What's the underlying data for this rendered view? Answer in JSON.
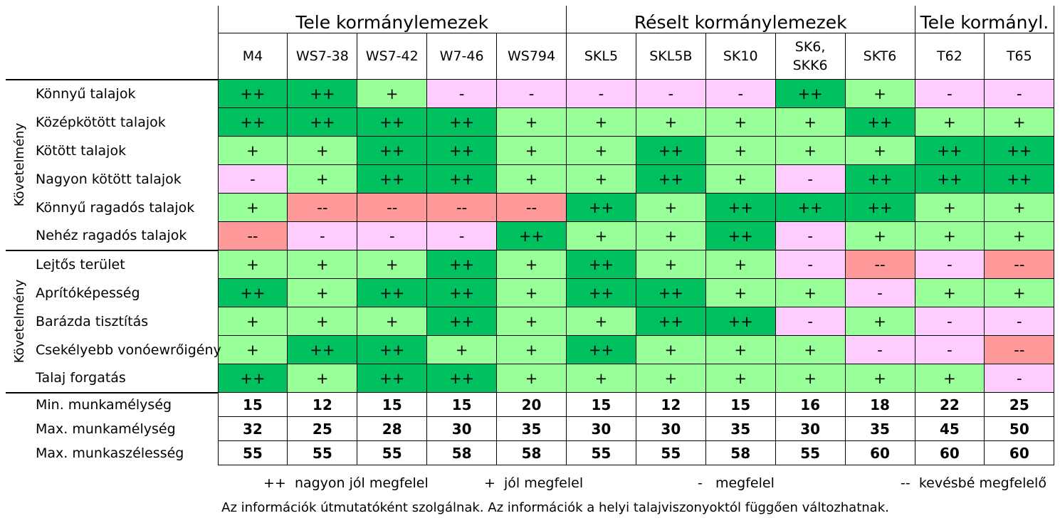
{
  "colors": {
    "plusplus": "#00c060",
    "plus": "#99ff99",
    "minus": "#ffccff",
    "minusminus": "#ff9999"
  },
  "groups": [
    {
      "label": "Tele kormánylemezek",
      "span": 5
    },
    {
      "label": "Réselt kormánylemezek",
      "span": 5
    },
    {
      "label": "Tele kormányl.",
      "span": 2
    }
  ],
  "models": [
    "M4",
    "WS7-38",
    "WS7-42",
    "W7-46",
    "WS794",
    "SKL5",
    "SKL5B",
    "SK10",
    "SK6,\nSKK6",
    "SKT6",
    "T62",
    "T65"
  ],
  "side_labels": [
    "Követelmény",
    "Követelmény"
  ],
  "sections": [
    {
      "rows": [
        {
          "label": "Könnyű talajok",
          "values": [
            "++",
            "++",
            "+",
            "-",
            "-",
            "-",
            "-",
            "-",
            "++",
            "+",
            "-",
            "-"
          ]
        },
        {
          "label": "Középkötött talajok",
          "values": [
            "++",
            "++",
            "++",
            "++",
            "+",
            "+",
            "+",
            "+",
            "+",
            "++",
            "+",
            "+"
          ]
        },
        {
          "label": "Kötött talajok",
          "values": [
            "+",
            "+",
            "++",
            "++",
            "+",
            "+",
            "++",
            "+",
            "+",
            "+",
            "++",
            "++"
          ]
        },
        {
          "label": "Nagyon kötött talajok",
          "values": [
            "-",
            "+",
            "++",
            "++",
            "+",
            "+",
            "++",
            "+",
            "-",
            "++",
            "++",
            "++"
          ]
        },
        {
          "label": "Könnyű ragadós talajok",
          "values": [
            "+",
            "--",
            "--",
            "--",
            "--",
            "++",
            "+",
            "++",
            "++",
            "++",
            "+",
            "+"
          ]
        },
        {
          "label": "Nehéz ragadós talajok",
          "values": [
            "--",
            "-",
            "-",
            "-",
            "++",
            "+",
            "+",
            "++",
            "-",
            "+",
            "+",
            "+"
          ]
        }
      ]
    },
    {
      "rows": [
        {
          "label": "Lejtős terület",
          "values": [
            "+",
            "+",
            "+",
            "++",
            "+",
            "++",
            "+",
            "+",
            "-",
            "--",
            "-",
            "--"
          ]
        },
        {
          "label": "Aprítóképesség",
          "values": [
            "++",
            "+",
            "++",
            "++",
            "+",
            "++",
            "++",
            "+",
            "+",
            "-",
            "+",
            "+"
          ]
        },
        {
          "label": "Barázda tisztítás",
          "values": [
            "+",
            "+",
            "+",
            "++",
            "+",
            "+",
            "++",
            "++",
            "-",
            "+",
            "-",
            "-"
          ]
        },
        {
          "label": "Csekélyebb vonóewrőigény",
          "values": [
            "+",
            "++",
            "++",
            "+",
            "+",
            "++",
            "+",
            "+",
            "+",
            "-",
            "-",
            "--"
          ]
        },
        {
          "label": "Talaj forgatás",
          "values": [
            "++",
            "+",
            "++",
            "++",
            "+",
            "+",
            "+",
            "+",
            "+",
            "+",
            "+",
            "-"
          ]
        }
      ]
    }
  ],
  "numeric_rows": [
    {
      "label": "Min. munkamélység",
      "values": [
        "15",
        "12",
        "15",
        "15",
        "20",
        "15",
        "12",
        "15",
        "16",
        "18",
        "22",
        "25"
      ]
    },
    {
      "label": "Max. munkamélység",
      "values": [
        "32",
        "25",
        "28",
        "30",
        "35",
        "30",
        "30",
        "35",
        "30",
        "35",
        "45",
        "50"
      ]
    },
    {
      "label": "Max. munkaszélesség",
      "values": [
        "55",
        "55",
        "55",
        "58",
        "58",
        "55",
        "55",
        "58",
        "55",
        "60",
        "60",
        "60"
      ]
    }
  ],
  "legend": [
    {
      "symbol": "++",
      "text": "nagyon jól megfelel"
    },
    {
      "symbol": "+",
      "text": "jól megfelel"
    },
    {
      "symbol": "-",
      "text": "megfelel"
    },
    {
      "symbol": "--",
      "text": "kevésbé megfelelő"
    }
  ],
  "footnote": "Az információk útmutatóként szolgálnak. Az információk a helyi talajviszonyoktól függően változhatnak."
}
